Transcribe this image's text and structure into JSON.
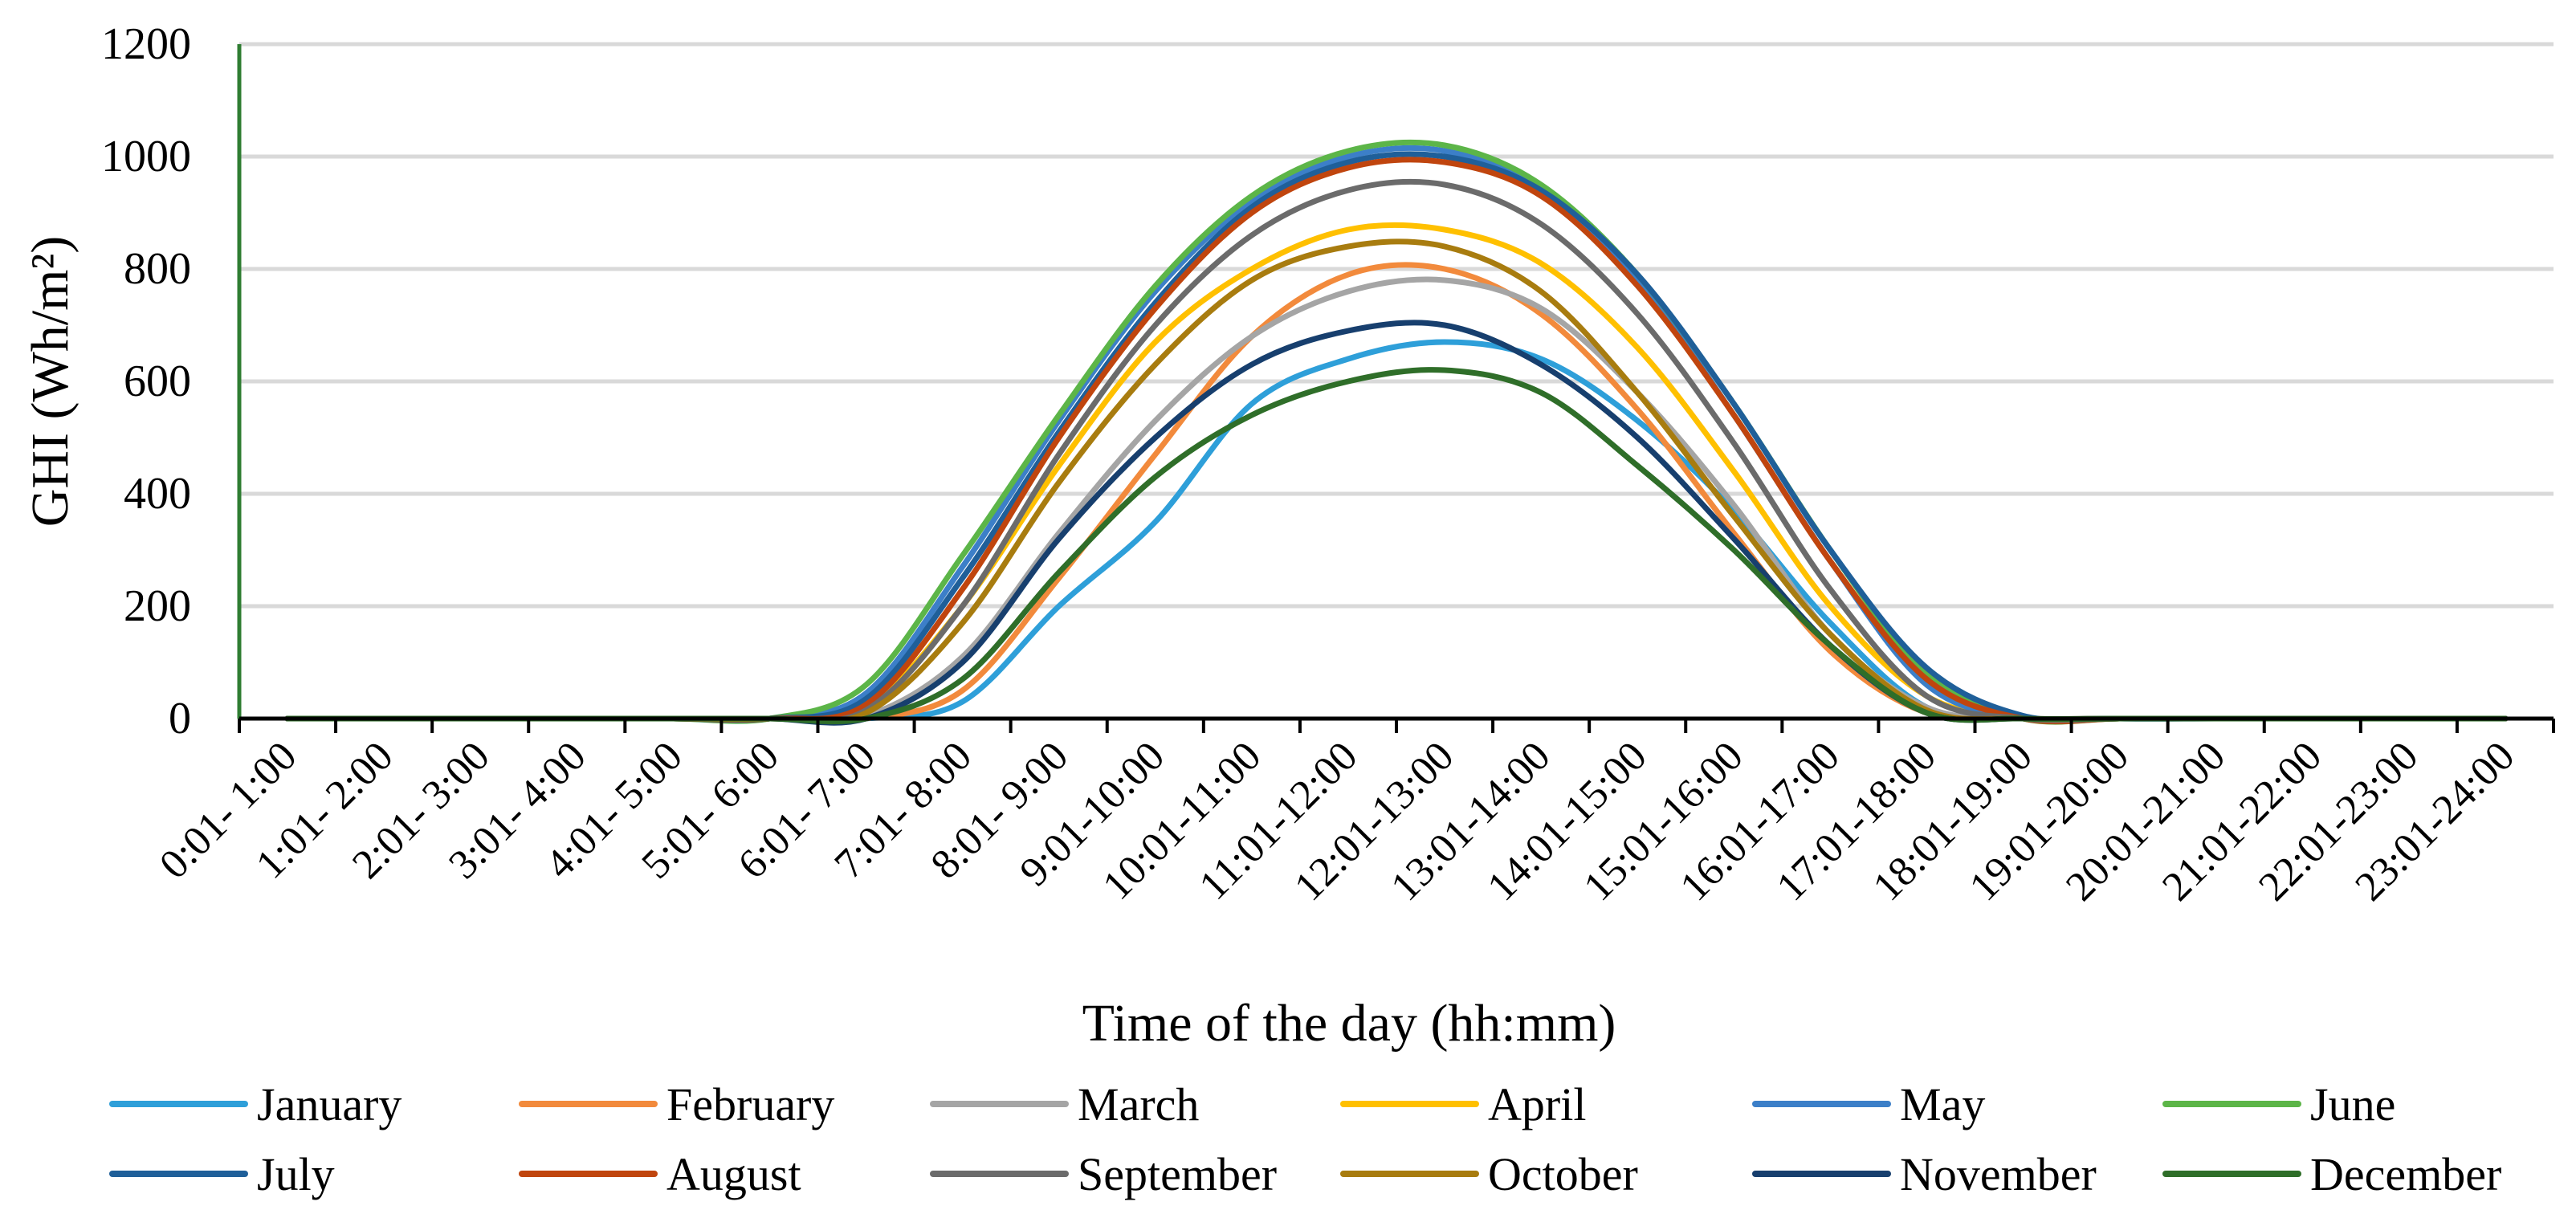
{
  "chart_data": {
    "type": "line",
    "title": "",
    "xlabel": "Time of the day (hh:mm)",
    "ylabel": "GHI (Wh/m²)",
    "ylim": [
      0,
      1200
    ],
    "yticks": [
      0,
      200,
      400,
      600,
      800,
      1000,
      1200
    ],
    "grid": true,
    "legend_position": "bottom",
    "categories": [
      "0:01- 1:00",
      "1:01- 2:00",
      "2:01- 3:00",
      "3:01- 4:00",
      "4:01- 5:00",
      "5:01- 6:00",
      "6:01- 7:00",
      "7:01- 8:00",
      "8:01- 9:00",
      "9:01-10:00",
      "10:01-11:00",
      "11:01-12:00",
      "12:01-13:00",
      "13:01-14:00",
      "14:01-15:00",
      "15:01-16:00",
      "16:01-17:00",
      "17:01-18:00",
      "18:01-19:00",
      "19:01-20:00",
      "20:01-21:00",
      "21:01-22:00",
      "22:01-23:00",
      "23:01-24:00"
    ],
    "series": [
      {
        "name": "January",
        "color": "#2e9fd9",
        "values": [
          0,
          0,
          0,
          0,
          0,
          0,
          0,
          30,
          200,
          350,
          560,
          640,
          670,
          640,
          530,
          370,
          170,
          20,
          0,
          0,
          0,
          0,
          0,
          0
        ]
      },
      {
        "name": "February",
        "color": "#f28a3c",
        "values": [
          0,
          0,
          0,
          0,
          0,
          0,
          0,
          50,
          250,
          470,
          680,
          790,
          800,
          720,
          550,
          330,
          120,
          10,
          0,
          0,
          0,
          0,
          0,
          0
        ]
      },
      {
        "name": "March",
        "color": "#a5a5a5",
        "values": [
          0,
          0,
          0,
          0,
          0,
          0,
          5,
          110,
          330,
          530,
          680,
          760,
          780,
          730,
          580,
          380,
          150,
          20,
          0,
          0,
          0,
          0,
          0,
          0
        ]
      },
      {
        "name": "April",
        "color": "#ffc000",
        "values": [
          0,
          0,
          0,
          0,
          0,
          0,
          20,
          200,
          450,
          670,
          800,
          870,
          870,
          810,
          660,
          440,
          200,
          40,
          0,
          0,
          0,
          0,
          0,
          0
        ]
      },
      {
        "name": "May",
        "color": "#3c7fc8",
        "values": [
          0,
          0,
          0,
          0,
          0,
          0,
          45,
          270,
          530,
          760,
          920,
          1000,
          1010,
          940,
          780,
          540,
          280,
          60,
          0,
          0,
          0,
          0,
          0,
          0
        ]
      },
      {
        "name": "June",
        "color": "#5cb548",
        "values": [
          0,
          0,
          0,
          0,
          0,
          0,
          60,
          290,
          540,
          770,
          930,
          1010,
          1020,
          950,
          790,
          560,
          300,
          80,
          0,
          0,
          0,
          0,
          0,
          0
        ]
      },
      {
        "name": "July",
        "color": "#1f5f99",
        "values": [
          0,
          0,
          0,
          0,
          0,
          0,
          35,
          250,
          510,
          740,
          910,
          990,
          1000,
          940,
          790,
          560,
          300,
          90,
          5,
          0,
          0,
          0,
          0,
          0
        ]
      },
      {
        "name": "August",
        "color": "#c0450e",
        "values": [
          0,
          0,
          0,
          0,
          0,
          0,
          25,
          230,
          500,
          730,
          900,
          980,
          990,
          930,
          770,
          540,
          280,
          70,
          0,
          0,
          0,
          0,
          0,
          0
        ]
      },
      {
        "name": "September",
        "color": "#6b6b6b",
        "values": [
          0,
          0,
          0,
          0,
          0,
          0,
          15,
          200,
          470,
          700,
          860,
          940,
          950,
          880,
          720,
          490,
          230,
          40,
          0,
          0,
          0,
          0,
          0,
          0
        ]
      },
      {
        "name": "October",
        "color": "#a87c0f",
        "values": [
          0,
          0,
          0,
          0,
          0,
          0,
          10,
          170,
          420,
          630,
          780,
          840,
          840,
          760,
          580,
          360,
          150,
          15,
          0,
          0,
          0,
          0,
          0,
          0
        ]
      },
      {
        "name": "November",
        "color": "#173f6e",
        "values": [
          0,
          0,
          0,
          0,
          0,
          0,
          0,
          100,
          320,
          500,
          630,
          690,
          700,
          630,
          500,
          320,
          130,
          10,
          0,
          0,
          0,
          0,
          0,
          0
        ]
      },
      {
        "name": "December",
        "color": "#2f6e29",
        "values": [
          0,
          0,
          0,
          0,
          0,
          0,
          0,
          70,
          260,
          430,
          540,
          600,
          620,
          580,
          450,
          300,
          130,
          10,
          0,
          0,
          0,
          0,
          0,
          0
        ]
      }
    ]
  }
}
